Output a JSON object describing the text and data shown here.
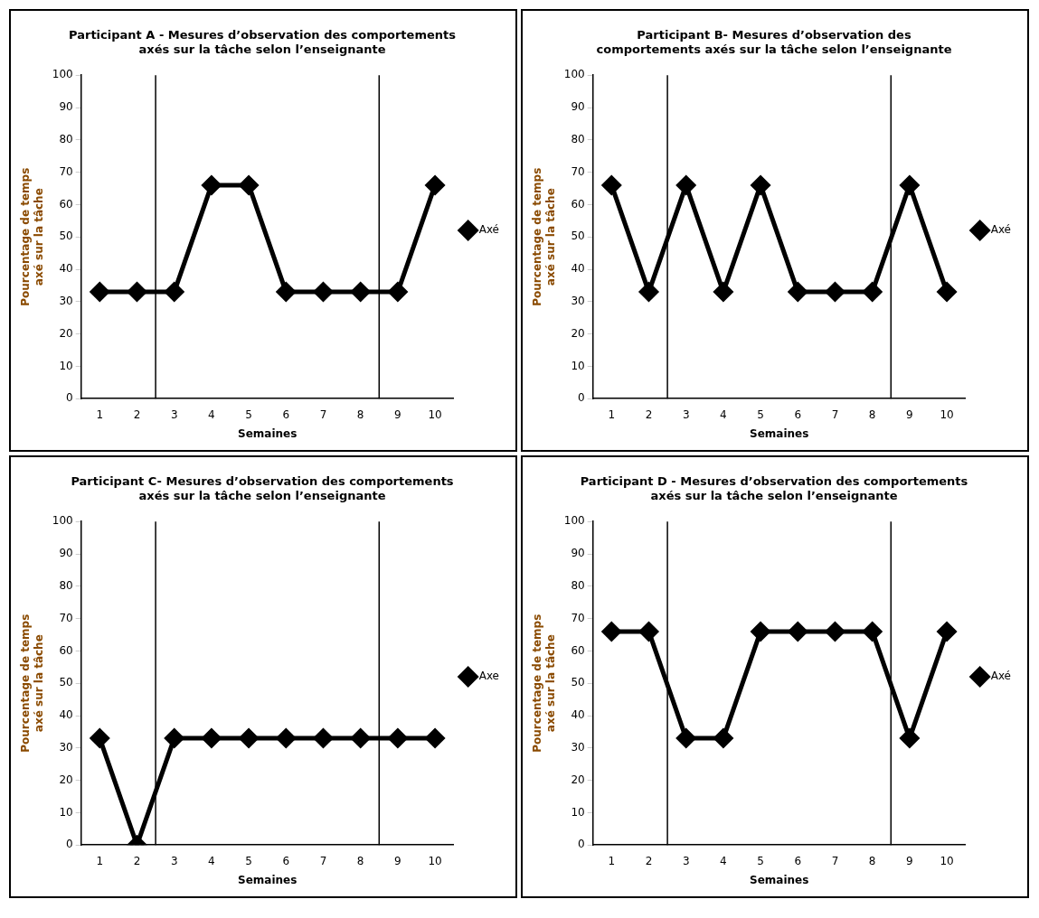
{
  "chart_data": [
    {
      "type": "line",
      "title": "Participant A - Mesures d’observation des comportements\naxés sur la tâche selon l’enseignante",
      "xlabel": "Semaines",
      "ylabel": "Pourcentage de temps\naxé sur la tâche",
      "x": [
        1,
        2,
        3,
        4,
        5,
        6,
        7,
        8,
        9,
        10
      ],
      "xlim": [
        0.5,
        10.5
      ],
      "xticks": [
        1,
        2,
        3,
        4,
        5,
        6,
        7,
        8,
        9,
        10
      ],
      "ylim": [
        0,
        100
      ],
      "yticks": [
        0,
        10,
        20,
        30,
        40,
        50,
        60,
        70,
        80,
        90,
        100
      ],
      "series": [
        {
          "name": "Axé",
          "color": "#000000",
          "values": [
            33,
            33,
            33,
            66,
            66,
            33,
            33,
            33,
            33,
            66
          ]
        }
      ],
      "ref_lines": [
        {
          "axis": "x",
          "value": 2.5,
          "color": "#000000"
        },
        {
          "axis": "x",
          "value": 8.5,
          "color": "#000000"
        }
      ],
      "legend": "right",
      "marker": "diamond",
      "grid": false
    },
    {
      "type": "line",
      "title": "Participant B- Mesures d’observation des\ncomportements axés sur la tâche selon l’enseignante",
      "xlabel": "Semaines",
      "ylabel": "Pourcentage de temps\naxé sur la tâche",
      "x": [
        1,
        2,
        3,
        4,
        5,
        6,
        7,
        8,
        9,
        10
      ],
      "xlim": [
        0.5,
        10.5
      ],
      "xticks": [
        1,
        2,
        3,
        4,
        5,
        6,
        7,
        8,
        9,
        10
      ],
      "ylim": [
        0,
        100
      ],
      "yticks": [
        0,
        10,
        20,
        30,
        40,
        50,
        60,
        70,
        80,
        90,
        100
      ],
      "series": [
        {
          "name": "Axé",
          "color": "#000000",
          "values": [
            66,
            33,
            66,
            33,
            66,
            33,
            33,
            33,
            66,
            33
          ]
        }
      ],
      "ref_lines": [
        {
          "axis": "x",
          "value": 2.5,
          "color": "#000000"
        },
        {
          "axis": "x",
          "value": 8.5,
          "color": "#000000"
        }
      ],
      "legend": "right",
      "marker": "diamond",
      "grid": false
    },
    {
      "type": "line",
      "title": "Participant C- Mesures d’observation des comportements\naxés sur la tâche selon l’enseignante",
      "xlabel": "Semaines",
      "ylabel": "Pourcentage de temps\naxé sur la tâche",
      "x": [
        1,
        2,
        3,
        4,
        5,
        6,
        7,
        8,
        9,
        10
      ],
      "xlim": [
        0.5,
        10.5
      ],
      "xticks": [
        1,
        2,
        3,
        4,
        5,
        6,
        7,
        8,
        9,
        10
      ],
      "ylim": [
        0,
        100
      ],
      "yticks": [
        0,
        10,
        20,
        30,
        40,
        50,
        60,
        70,
        80,
        90,
        100
      ],
      "series": [
        {
          "name": "Axe",
          "color": "#000000",
          "values": [
            33,
            0,
            33,
            33,
            33,
            33,
            33,
            33,
            33,
            33
          ]
        }
      ],
      "ref_lines": [
        {
          "axis": "x",
          "value": 2.5,
          "color": "#000000"
        },
        {
          "axis": "x",
          "value": 8.5,
          "color": "#000000"
        }
      ],
      "legend": "right",
      "marker": "diamond",
      "grid": false
    },
    {
      "type": "line",
      "title": "Participant D - Mesures d’observation des comportements\naxés sur la tâche selon l’enseignante",
      "xlabel": "Semaines",
      "ylabel": "Pourcentage de temps\naxé sur la tâche",
      "x": [
        1,
        2,
        3,
        4,
        5,
        6,
        7,
        8,
        9,
        10
      ],
      "xlim": [
        0.5,
        10.5
      ],
      "xticks": [
        1,
        2,
        3,
        4,
        5,
        6,
        7,
        8,
        9,
        10
      ],
      "ylim": [
        0,
        100
      ],
      "yticks": [
        0,
        10,
        20,
        30,
        40,
        50,
        60,
        70,
        80,
        90,
        100
      ],
      "series": [
        {
          "name": "Axé",
          "color": "#000000",
          "values": [
            66,
            66,
            33,
            33,
            66,
            66,
            66,
            66,
            33,
            66
          ]
        }
      ],
      "ref_lines": [
        {
          "axis": "x",
          "value": 2.5,
          "color": "#000000"
        },
        {
          "axis": "x",
          "value": 8.5,
          "color": "#000000"
        }
      ],
      "legend": "right",
      "marker": "diamond",
      "grid": false
    }
  ]
}
